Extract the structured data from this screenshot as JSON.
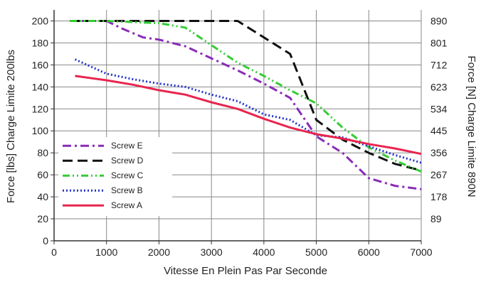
{
  "chart_data": {
    "type": "line",
    "xlabel": "Vitesse En Plein Pas Par Seconde",
    "ylabel_left": "Force [lbs] Charge Limite 200lbs",
    "ylabel_right": "Force [N] Charge Limite 890N",
    "xlim": [
      0,
      7000
    ],
    "ylim": [
      0,
      210
    ],
    "x_ticks": [
      0,
      1000,
      2000,
      3000,
      4000,
      5000,
      6000,
      7000
    ],
    "y_ticks_left": [
      0,
      20,
      40,
      60,
      80,
      100,
      120,
      140,
      160,
      180,
      200
    ],
    "y_ticks_right": [
      {
        "value": 20,
        "label": "89"
      },
      {
        "value": 40,
        "label": "178"
      },
      {
        "value": 60,
        "label": "267"
      },
      {
        "value": 80,
        "label": "356"
      },
      {
        "value": 100,
        "label": "445"
      },
      {
        "value": 120,
        "label": "534"
      },
      {
        "value": 140,
        "label": "623"
      },
      {
        "value": 160,
        "label": "712"
      },
      {
        "value": 180,
        "label": "801"
      },
      {
        "value": 200,
        "label": "890"
      }
    ],
    "grid": true,
    "legend_position": "bottom-left",
    "series": [
      {
        "name": "Screw E",
        "color": "#8a2bb8",
        "dash": "dash-dot",
        "x": [
          300,
          1000,
          1300,
          1700,
          2000,
          2500,
          3000,
          3500,
          4000,
          4500,
          5000,
          5500,
          6000,
          6500,
          7000
        ],
        "y": [
          200,
          200,
          193,
          185,
          183,
          177,
          166,
          155,
          143,
          130,
          95,
          80,
          57,
          50,
          47
        ]
      },
      {
        "name": "Screw D",
        "color": "#111111",
        "dash": "dash",
        "x": [
          300,
          1000,
          2000,
          3000,
          3500,
          4000,
          4500,
          5000,
          5500,
          6000,
          6500,
          7000
        ],
        "y": [
          200,
          200,
          200,
          200,
          200,
          185,
          170,
          110,
          92,
          80,
          70,
          64
        ]
      },
      {
        "name": "Screw C",
        "color": "#33cc33",
        "dash": "dash-dot-dot",
        "x": [
          300,
          1000,
          2000,
          2500,
          3000,
          3500,
          4000,
          4500,
          5000,
          5500,
          6000,
          6500,
          7000
        ],
        "y": [
          200,
          200,
          198,
          194,
          178,
          162,
          150,
          137,
          125,
          103,
          85,
          73,
          63
        ]
      },
      {
        "name": "Screw B",
        "color": "#2233cc",
        "dash": "dot",
        "x": [
          400,
          1000,
          1500,
          2000,
          2500,
          3000,
          3500,
          4000,
          4500,
          5000,
          5500,
          6000,
          6500,
          7000
        ],
        "y": [
          165,
          152,
          147,
          143,
          140,
          133,
          127,
          115,
          110,
          96,
          94,
          86,
          78,
          71
        ]
      },
      {
        "name": "Screw A",
        "color": "#e8254f",
        "dash": "solid",
        "x": [
          400,
          1000,
          1500,
          2000,
          2500,
          3000,
          3500,
          4000,
          4500,
          5000,
          5500,
          6000,
          6500,
          7000
        ],
        "y": [
          150,
          146,
          142,
          137,
          133,
          126,
          120,
          111,
          103,
          97,
          93,
          88,
          84,
          79
        ]
      }
    ],
    "legend_order": [
      0,
      1,
      2,
      3,
      4
    ]
  }
}
